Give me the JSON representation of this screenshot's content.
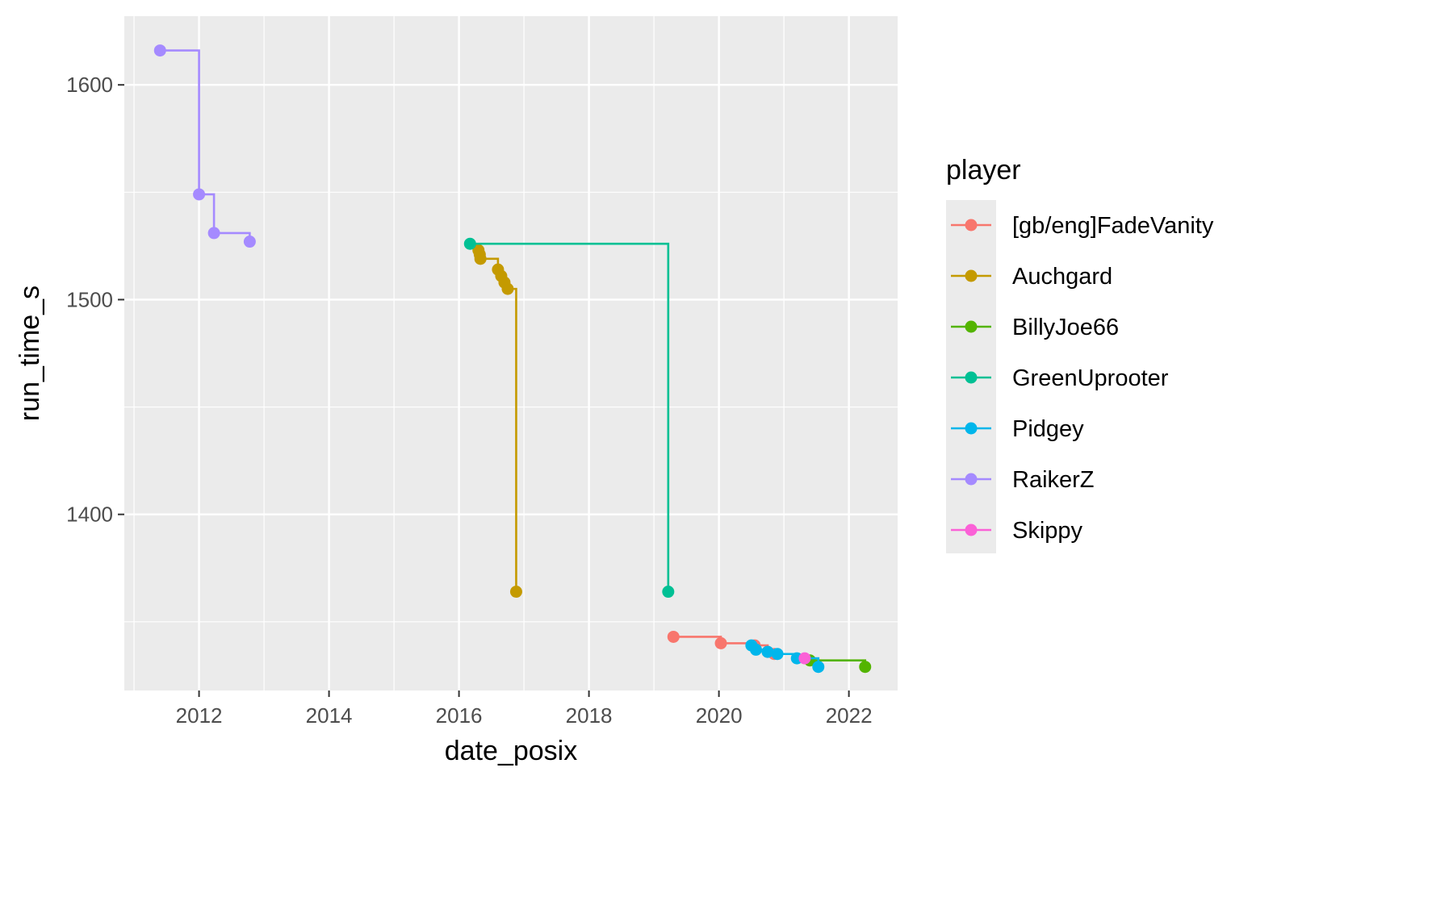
{
  "chart_data": {
    "type": "line",
    "style": "step",
    "title": "",
    "xlabel": "date_posix",
    "ylabel": "run_time_s",
    "xlim": [
      2010.85,
      2022.75
    ],
    "ylim": [
      1318,
      1632
    ],
    "x_ticks": [
      2012,
      2014,
      2016,
      2018,
      2020,
      2022
    ],
    "y_ticks": [
      1400,
      1500,
      1600
    ],
    "grid": true,
    "legend": {
      "title": "player",
      "position": "right"
    },
    "series": [
      {
        "name": "[gb/eng]FadeVanity",
        "color": "#F8766D",
        "x": [
          2019.3,
          2020.03,
          2020.55,
          2020.75,
          2020.85
        ],
        "y": [
          1343,
          1340,
          1339,
          1336,
          1335
        ]
      },
      {
        "name": "Auchgard",
        "color": "#C49A00",
        "x": [
          2016.3,
          2016.32,
          2016.33,
          2016.6,
          2016.65,
          2016.7,
          2016.75,
          2016.88
        ],
        "y": [
          1523,
          1521,
          1519,
          1514,
          1511,
          1508,
          1505,
          1364
        ]
      },
      {
        "name": "BillyJoe66",
        "color": "#53B400",
        "x": [
          2021.4,
          2022.25
        ],
        "y": [
          1332,
          1329
        ]
      },
      {
        "name": "GreenUprooter",
        "color": "#00C094",
        "x": [
          2016.17,
          2019.22
        ],
        "y": [
          1526,
          1364
        ]
      },
      {
        "name": "Pidgey",
        "color": "#00B6EB",
        "x": [
          2020.5,
          2020.57,
          2020.75,
          2020.9,
          2021.2,
          2021.53
        ],
        "y": [
          1339,
          1337,
          1336,
          1335,
          1333,
          1329
        ]
      },
      {
        "name": "RaikerZ",
        "color": "#A58AFF",
        "x": [
          2011.4,
          2012.0,
          2012.23,
          2012.78
        ],
        "y": [
          1616,
          1549,
          1531,
          1527
        ]
      },
      {
        "name": "Skippy",
        "color": "#FB61D7",
        "x": [
          2021.32
        ],
        "y": [
          1333
        ]
      }
    ]
  }
}
